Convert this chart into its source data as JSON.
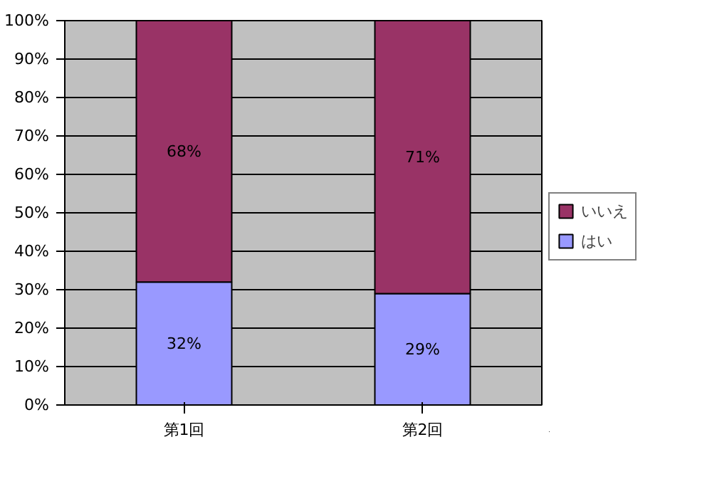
{
  "chart_data": {
    "type": "bar",
    "stacked": true,
    "categories": [
      "第1回",
      "第2回"
    ],
    "series": [
      {
        "name": "はい",
        "color": "#9999ff",
        "values": [
          32,
          29
        ],
        "value_labels": [
          "32%",
          "29%"
        ]
      },
      {
        "name": "いいえ",
        "color": "#993366",
        "values": [
          68,
          71
        ],
        "value_labels": [
          "68%",
          "71%"
        ]
      }
    ],
    "ylim": [
      0,
      100
    ],
    "yticks": [
      {
        "value": 0,
        "label": "0%"
      },
      {
        "value": 10,
        "label": "10%"
      },
      {
        "value": 20,
        "label": "20%"
      },
      {
        "value": 30,
        "label": "30%"
      },
      {
        "value": 40,
        "label": "40%"
      },
      {
        "value": 50,
        "label": "50%"
      },
      {
        "value": 60,
        "label": "60%"
      },
      {
        "value": 70,
        "label": "70%"
      },
      {
        "value": 80,
        "label": "80%"
      },
      {
        "value": 90,
        "label": "90%"
      },
      {
        "value": 100,
        "label": "100%"
      }
    ],
    "grid": "y",
    "legend": "right"
  }
}
